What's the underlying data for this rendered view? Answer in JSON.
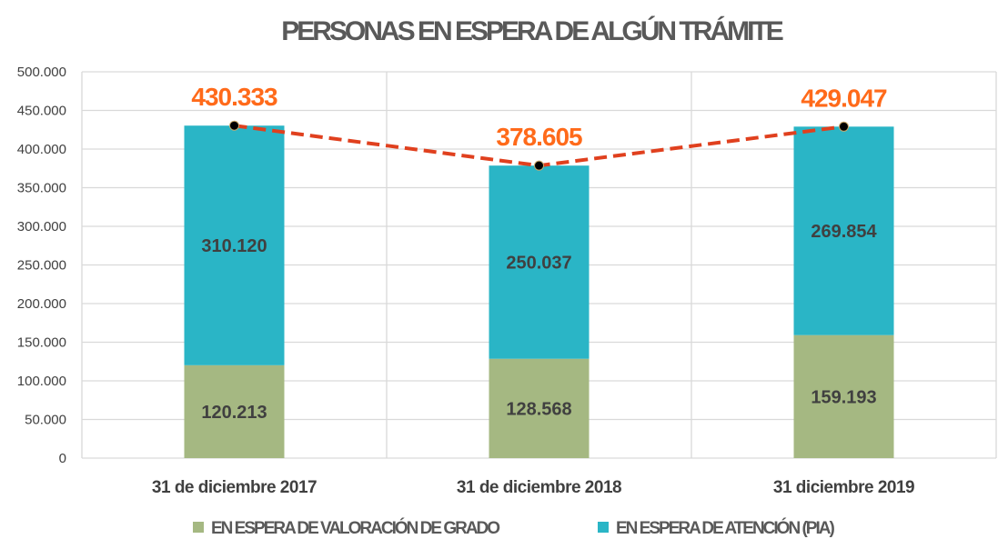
{
  "chart_data": {
    "type": "bar",
    "stacked": true,
    "title": "PERSONAS EN ESPERA DE ALGÚN TRÁMITE",
    "categories": [
      "31 de diciembre 2017",
      "31 de diciembre 2018",
      "31 diciembre 2019"
    ],
    "series": [
      {
        "name": "EN ESPERA DE VALORACIÓN DE GRADO",
        "values": [
          120213,
          128568,
          159193
        ],
        "labels": [
          "120.213",
          "128.568",
          "159.193"
        ],
        "color": "#a5b882"
      },
      {
        "name": "EN ESPERA DE ATENCIÓN (PIA)",
        "values": [
          310120,
          250037,
          269854
        ],
        "labels": [
          "310.120",
          "250.037",
          "269.854"
        ],
        "color": "#2ab5c6"
      }
    ],
    "totals": {
      "values": [
        430333,
        378605,
        429047
      ],
      "labels": [
        "430.333",
        "378.605",
        "429.047"
      ],
      "line_color": "#e0401e",
      "label_color": "#ff6a1a",
      "line_style": "dashed"
    },
    "ylim": [
      0,
      500000
    ],
    "yticks": [
      0,
      50000,
      100000,
      150000,
      200000,
      250000,
      300000,
      350000,
      400000,
      450000,
      500000
    ],
    "ytick_labels": [
      "0",
      "50.000",
      "100.000",
      "150.000",
      "200.000",
      "250.000",
      "300.000",
      "350.000",
      "400.000",
      "450.000",
      "500.000"
    ],
    "grid": true,
    "legend_position": "bottom",
    "xlabel": "",
    "ylabel": ""
  }
}
